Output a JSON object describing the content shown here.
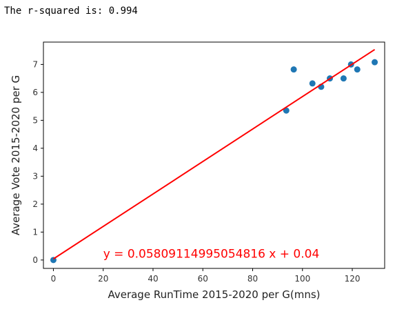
{
  "output": {
    "rsquared_text": "The r-squared is: 0.994"
  },
  "chart_data": {
    "type": "scatter",
    "title": "",
    "xlabel": "Average RunTime 2015-2020 per G(mns)",
    "ylabel": "Average Vote 2015-2020 per G",
    "xlim": [
      -4,
      133
    ],
    "ylim": [
      -0.3,
      7.8
    ],
    "xticks": [
      0,
      20,
      40,
      60,
      80,
      100,
      120
    ],
    "yticks": [
      0,
      1,
      2,
      3,
      4,
      5,
      6,
      7
    ],
    "grid": false,
    "points": [
      {
        "x": 0,
        "y": 0
      },
      {
        "x": 93.5,
        "y": 5.35
      },
      {
        "x": 96.5,
        "y": 6.82
      },
      {
        "x": 104,
        "y": 6.32
      },
      {
        "x": 107.5,
        "y": 6.2
      },
      {
        "x": 111,
        "y": 6.5
      },
      {
        "x": 116.5,
        "y": 6.5
      },
      {
        "x": 119.5,
        "y": 7.0
      },
      {
        "x": 122,
        "y": 6.82
      },
      {
        "x": 129,
        "y": 7.08
      }
    ],
    "regression": {
      "slope": 0.05809114995054816,
      "intercept": 0.04,
      "x_range": [
        0,
        129
      ],
      "equation_text": "y = 0.05809114995054816 x + 0.04"
    },
    "colors": {
      "points": "#1f77b4",
      "line": "#ff0000",
      "equation": "#ff0000",
      "axes": "#000000"
    }
  }
}
